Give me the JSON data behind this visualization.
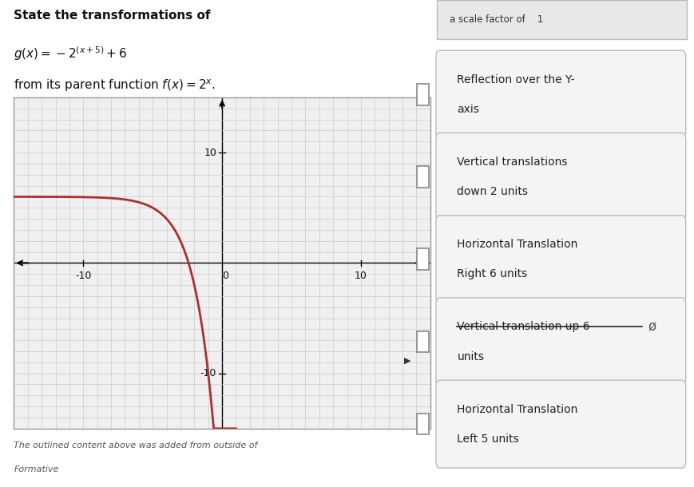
{
  "title_line1": "State the transformations of",
  "title_line2": "g(x) = -2^{(x+5)} + 6",
  "title_line3": "from its parent function f(x) = 2^x.",
  "xlim": [
    -15,
    15
  ],
  "ylim": [
    -15,
    15
  ],
  "curve_color": "#a93030",
  "curve_linewidth": 2.0,
  "grid_color": "#cccccc",
  "grid_linewidth": 0.5,
  "axis_color": "#000000",
  "bg_color": "#ffffff",
  "graph_bg": "#f0f0f0",
  "checkbox_options": [
    [
      "Reflection over the Y-",
      "axis"
    ],
    [
      "Vertical translations",
      "down 2 units"
    ],
    [
      "Horizontal Translation",
      "Right 6 units"
    ],
    [
      "Vertical translation up 6",
      "units"
    ],
    [
      "Horizontal Translation",
      "Left 5 units"
    ]
  ],
  "strikethrough_idx": 3,
  "strikethrough_symbol": "Ø",
  "footer_text": "The outlined content above was added from outside of",
  "footer_text2": "Formative",
  "top_partial_text": "a scale factor of    1",
  "box_facecolor": "#f4f4f4",
  "box_edgecolor": "#bbbbbb",
  "cb_edgecolor": "#888888",
  "cursor_idx": 3
}
